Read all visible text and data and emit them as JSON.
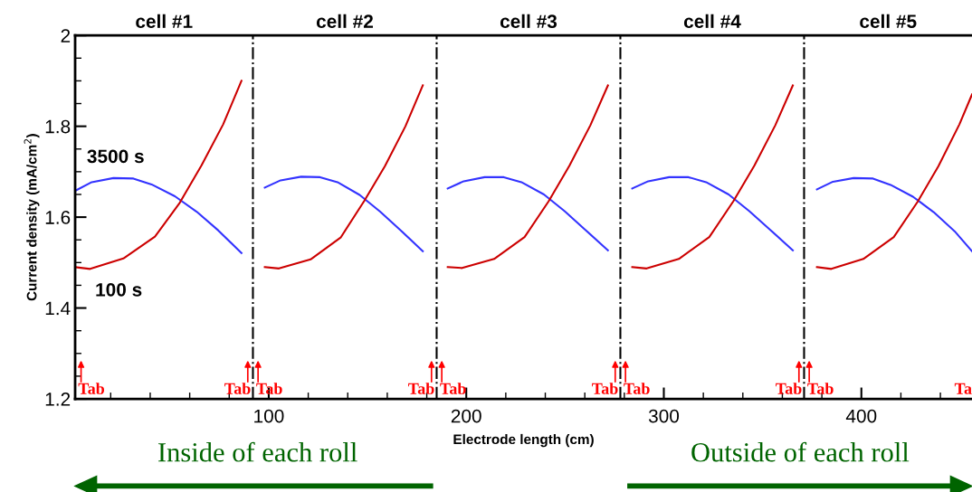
{
  "chart_data": {
    "type": "line",
    "xlabel": "Electrode length (cm)",
    "ylabel": "Current density (mA/cm$^{2}$)",
    "xlim": [
      2,
      456
    ],
    "ylim": [
      1.2,
      2
    ],
    "xticks": [
      {
        "value": 20,
        "label": null
      },
      {
        "value": 40,
        "label": null
      },
      {
        "value": 60,
        "label": null
      },
      {
        "value": 80,
        "label": null
      },
      100,
      {
        "value": 120,
        "label": null
      },
      {
        "value": 140,
        "label": null
      },
      {
        "value": 160,
        "label": null
      },
      {
        "value": 180,
        "label": null
      },
      200,
      {
        "value": 220,
        "label": null
      },
      {
        "value": 240,
        "label": null
      },
      {
        "value": 260,
        "label": null
      },
      {
        "value": 280,
        "label": null
      },
      300,
      {
        "value": 320,
        "label": null
      },
      {
        "value": 340,
        "label": null
      },
      {
        "value": 360,
        "label": null
      },
      {
        "value": 380,
        "label": null
      },
      400,
      {
        "value": 420,
        "label": null
      },
      {
        "value": 440,
        "label": null
      }
    ],
    "yticks": [
      1.2,
      {
        "value": 1.25,
        "label": null
      },
      {
        "value": 1.3,
        "label": null
      },
      {
        "value": 1.35,
        "label": null
      },
      1.4,
      {
        "value": 1.45,
        "label": null
      },
      {
        "value": 1.5,
        "label": null
      },
      {
        "value": 1.55,
        "label": null
      },
      1.6,
      {
        "value": 1.65,
        "label": null
      },
      {
        "value": 1.7,
        "label": null
      },
      {
        "value": 1.75,
        "label": null
      },
      1.8,
      {
        "value": 1.85,
        "label": null
      },
      {
        "value": 1.9,
        "label": null
      },
      {
        "value": 1.95,
        "label": null
      },
      2
    ],
    "grid": false,
    "legend": false,
    "marker": "none",
    "line_style": "solid",
    "series": [
      {
        "name": "3500 s",
        "color": "#3333ff",
        "x": [
          2,
          10.4,
          21.4,
          31.5,
          40.7,
          52.5,
          63.5,
          74.4,
          86.2
        ],
        "values": [
          1.658,
          1.677,
          1.686,
          1.685,
          1.672,
          1.646,
          1.612,
          1.571,
          1.521
        ]
      },
      {
        "name": "100 s",
        "color": "#cc0000",
        "x": [
          2,
          9.6,
          26.4,
          42.4,
          55.0,
          66.0,
          76.9,
          86.2
        ],
        "values": [
          1.49,
          1.486,
          1.509,
          1.557,
          1.632,
          1.714,
          1.804,
          1.9
        ]
      },
      {
        "color": "#3333ff",
        "x": [
          98,
          106,
          116.4,
          126,
          134.8,
          146,
          156.4,
          166.8,
          178
        ],
        "values": [
          1.665,
          1.681,
          1.689,
          1.688,
          1.677,
          1.649,
          1.612,
          1.571,
          1.525
        ]
      },
      {
        "color": "#cc0000",
        "x": [
          98,
          105.2,
          121.2,
          136.4,
          148.4,
          158.8,
          169.2,
          178
        ],
        "values": [
          1.49,
          1.487,
          1.507,
          1.555,
          1.636,
          1.712,
          1.8,
          1.89
        ]
      },
      {
        "color": "#3333ff",
        "x": [
          190.6,
          198.7,
          209.3,
          219,
          227.9,
          239.3,
          249.8,
          260.3,
          271.7
        ],
        "values": [
          1.663,
          1.679,
          1.688,
          1.688,
          1.677,
          1.65,
          1.613,
          1.572,
          1.527
        ]
      },
      {
        "color": "#cc0000",
        "x": [
          190.6,
          197.9,
          214.1,
          229.5,
          241.7,
          252.2,
          262.8,
          271.7
        ],
        "values": [
          1.49,
          1.488,
          1.508,
          1.556,
          1.635,
          1.713,
          1.802,
          1.89
        ]
      },
      {
        "color": "#3333ff",
        "x": [
          284,
          292.1,
          302.7,
          312.5,
          321.4,
          332.8,
          343.3,
          353.9,
          365.3
        ],
        "values": [
          1.663,
          1.679,
          1.688,
          1.688,
          1.677,
          1.65,
          1.613,
          1.572,
          1.527
        ]
      },
      {
        "color": "#cc0000",
        "x": [
          284,
          291.3,
          307.6,
          323.0,
          335.2,
          345.8,
          356.4,
          365.3
        ],
        "values": [
          1.49,
          1.487,
          1.508,
          1.556,
          1.635,
          1.713,
          1.802,
          1.89
        ]
      },
      {
        "color": "#3333ff",
        "x": [
          377.5,
          385.6,
          396.1,
          405.9,
          414.8,
          426.1,
          436.6,
          447.2,
          456
        ],
        "values": [
          1.661,
          1.678,
          1.686,
          1.685,
          1.671,
          1.645,
          1.611,
          1.569,
          1.525
        ]
      },
      {
        "color": "#cc0000",
        "x": [
          377.5,
          384.8,
          401,
          416.4,
          428.5,
          439,
          449.6,
          456
        ],
        "values": [
          1.49,
          1.486,
          1.508,
          1.556,
          1.634,
          1.712,
          1.804,
          1.87
        ]
      }
    ],
    "ref_lines": [
      {
        "axis": "x",
        "value": 92,
        "color": "#000000",
        "line_style": "dashdot"
      },
      {
        "axis": "x",
        "value": 185,
        "color": "#000000",
        "line_style": "dashdot"
      },
      {
        "axis": "x",
        "value": 278,
        "color": "#000000",
        "line_style": "dashdot"
      },
      {
        "axis": "x",
        "value": 371,
        "color": "#000000",
        "line_style": "dashdot"
      }
    ],
    "annotations": [
      "cell #1",
      "cell #2",
      "cell #3",
      "cell #4",
      "cell #5",
      "Tab",
      "Tab",
      "Tab",
      "Tab",
      "Tab",
      "Tab",
      "Tab",
      "Tab",
      "Tab",
      "Ta",
      "Inside of each roll",
      "Outside of each roll"
    ]
  }
}
